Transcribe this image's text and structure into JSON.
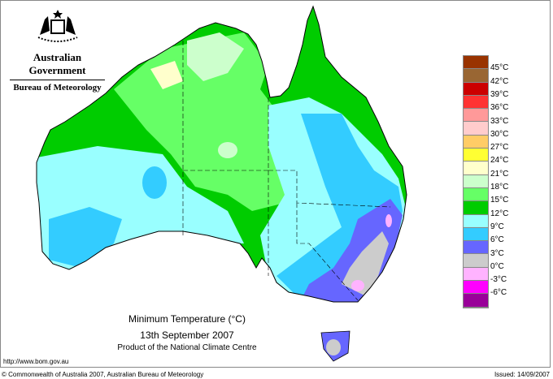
{
  "header": {
    "government": "Australian Government",
    "bureau": "Bureau of Meteorology"
  },
  "map": {
    "title": "Minimum Temperature (°C)",
    "date": "13th September 2007",
    "product": "Product of the National Climate Centre"
  },
  "footer": {
    "url": "http://www.bom.gov.au",
    "copyright": "© Commonwealth of Australia 2007, Australian Bureau of Meteorology",
    "issued": "Issued: 14/09/2007"
  },
  "legend": {
    "colors": [
      "#993300",
      "#996633",
      "#cc0000",
      "#ff3333",
      "#ff9999",
      "#ffcccc",
      "#ffcc66",
      "#ffff33",
      "#ffffcc",
      "#ccffcc",
      "#66ff66",
      "#00cc00",
      "#99ffff",
      "#33ccff",
      "#6666ff",
      "#cccccc",
      "#ffb3ff",
      "#ff00ff",
      "#990099"
    ],
    "labels": [
      "45°C",
      "42°C",
      "39°C",
      "36°C",
      "33°C",
      "30°C",
      "27°C",
      "24°C",
      "21°C",
      "18°C",
      "15°C",
      "12°C",
      "9°C",
      "6°C",
      "3°C",
      "0°C",
      "-3°C",
      "-6°C"
    ]
  }
}
